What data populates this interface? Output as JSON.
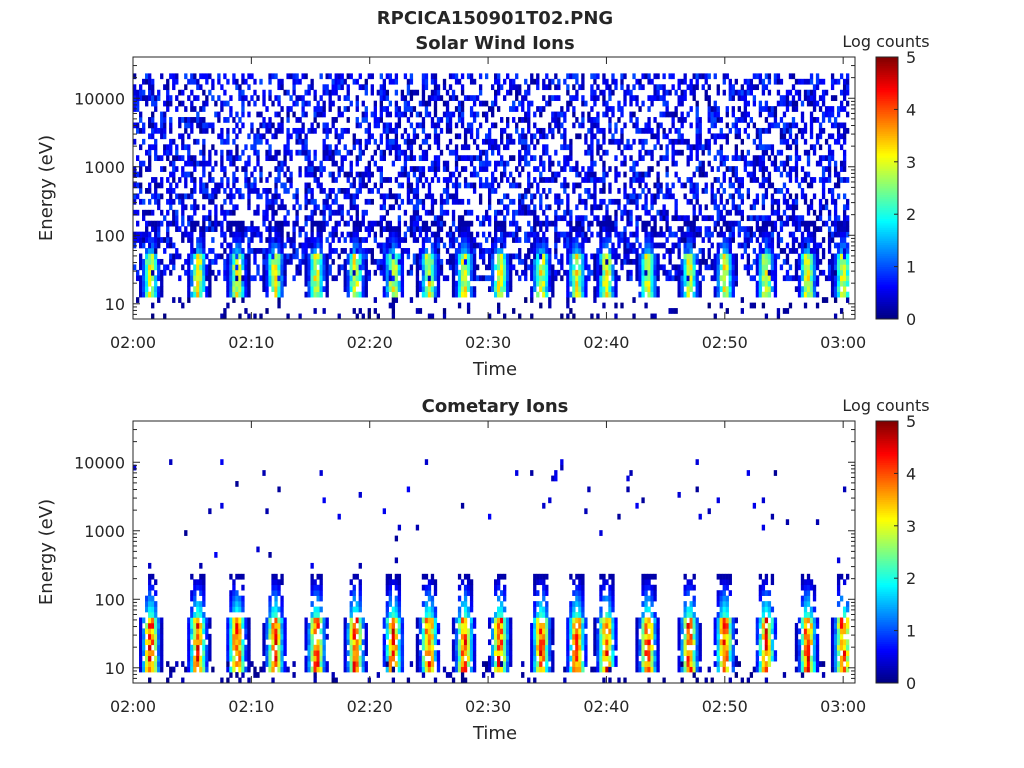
{
  "figure_title": "RPCICA150901T02.PNG",
  "chart_data": [
    {
      "type": "heatmap",
      "title": "Solar Wind Ions",
      "xlabel": "Time",
      "ylabel": "Energy (eV)",
      "x_tick_labels": [
        "02:00",
        "02:10",
        "02:20",
        "02:30",
        "02:40",
        "02:50",
        "03:00"
      ],
      "x_range": [
        "02:00",
        "03:01"
      ],
      "y_scale": "log",
      "y_tick_labels": [
        "10",
        "100",
        "1000",
        "10000"
      ],
      "y_ticks": [
        10,
        100,
        1000,
        10000
      ],
      "y_range": [
        6,
        40000
      ],
      "colorbar": {
        "label": "Log counts",
        "range": [
          0,
          5
        ],
        "tick_labels": [
          "0",
          "1",
          "2",
          "3",
          "4",
          "5"
        ],
        "colormap": "jet"
      },
      "pulse_centers_min": [
        1.5,
        5.5,
        8.8,
        12,
        15.5,
        18.8,
        22,
        25,
        28,
        31,
        34.5,
        37.5,
        40,
        43.5,
        47,
        50,
        53.5,
        57,
        60
      ],
      "pulse_peak_log_counts": 3.2,
      "pulse_core_energy_ev": [
        20,
        45
      ],
      "pulse_top_energy_ev": 150,
      "noise_energy_ev": [
        20,
        25000
      ],
      "noise_log_counts": [
        0.1,
        1.0
      ]
    },
    {
      "type": "heatmap",
      "title": "Cometary Ions",
      "xlabel": "Time",
      "ylabel": "Energy (eV)",
      "x_tick_labels": [
        "02:00",
        "02:10",
        "02:20",
        "02:30",
        "02:40",
        "02:50",
        "03:00"
      ],
      "x_range": [
        "02:00",
        "03:01"
      ],
      "y_scale": "log",
      "y_tick_labels": [
        "10",
        "100",
        "1000",
        "10000"
      ],
      "y_ticks": [
        10,
        100,
        1000,
        10000
      ],
      "y_range": [
        6,
        40000
      ],
      "colorbar": {
        "label": "Log counts",
        "range": [
          0,
          5
        ],
        "tick_labels": [
          "0",
          "1",
          "2",
          "3",
          "4",
          "5"
        ],
        "colormap": "jet"
      },
      "pulse_centers_min": [
        1.5,
        5.5,
        8.8,
        12,
        15.5,
        18.8,
        22,
        25,
        28,
        31,
        34.5,
        37.5,
        40,
        43.5,
        47,
        50,
        53.5,
        57,
        60
      ],
      "pulse_peak_log_counts": 4.3,
      "pulse_core_energy_ev": [
        15,
        45
      ],
      "pulse_top_energy_ev": 250,
      "noise_energy_ev": [
        300,
        12000
      ],
      "noise_log_counts": [
        0.1,
        0.6
      ]
    }
  ]
}
